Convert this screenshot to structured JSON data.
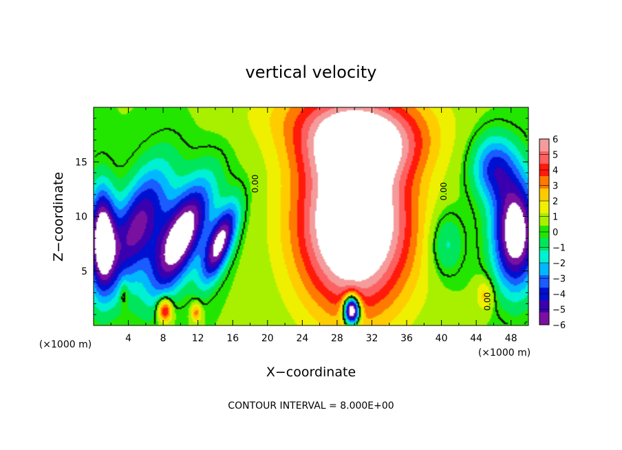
{
  "chart_data": {
    "type": "heatmap",
    "title": "vertical velocity",
    "xlabel": "X−coordinate",
    "ylabel": "Z−coordinate",
    "x_unit_label_left": "(×1000 m)",
    "x_unit_label_right": "(×1000 m)",
    "footer": "CONTOUR INTERVAL = 8.000E+00",
    "xlim": [
      0,
      50
    ],
    "ylim": [
      0,
      20
    ],
    "x_ticks": [
      4,
      8,
      12,
      16,
      20,
      24,
      28,
      32,
      36,
      40,
      44,
      48
    ],
    "x_tick_labels": [
      "4",
      "8",
      "12",
      "16",
      "20",
      "24",
      "28",
      "32",
      "36",
      "40",
      "44",
      "48"
    ],
    "y_ticks": [
      5,
      10,
      15
    ],
    "y_tick_labels": [
      "5",
      "10",
      "15"
    ],
    "colorbar": {
      "min": -6,
      "max": 6,
      "ticks": [
        6,
        5,
        4,
        3,
        2,
        1,
        0,
        -1,
        -2,
        -3,
        -4,
        -5,
        -6
      ],
      "tick_labels": [
        "6",
        "5",
        "4",
        "3",
        "2",
        "1",
        "0",
        "−1",
        "−2",
        "−3",
        "−4",
        "−5",
        "−6"
      ],
      "colors": [
        "#f49b9b",
        "#fd6060",
        "#ff1a0a",
        "#ff7a00",
        "#ffcc00",
        "#eef000",
        "#a8f000",
        "#22e600",
        "#00e65c",
        "#00f0d2",
        "#00b8ff",
        "#1a5cff",
        "#0010d0",
        "#3a00b0",
        "#7a10a0"
      ]
    },
    "contour_labels": [
      {
        "text": "0.00",
        "x": 18.9,
        "z": 13.0
      },
      {
        "text": "0.00",
        "x": 40.6,
        "z": 12.3
      },
      {
        "text": "0.00",
        "x": 45.6,
        "z": 2.2
      }
    ],
    "features": [
      {
        "type": "updraft",
        "x": 30,
        "z": 9.5,
        "sx": 6.5,
        "sz": 8,
        "amp": 9
      },
      {
        "type": "updraft",
        "x": 31,
        "z": 16.5,
        "sx": 7,
        "sz": 3,
        "amp": 4.5
      },
      {
        "type": "updraft",
        "x": 29,
        "z": 19.5,
        "sx": 10,
        "sz": 3,
        "amp": 2.5
      },
      {
        "type": "downdraft",
        "x": 29.7,
        "z": 1.4,
        "sx": 0.9,
        "sz": 1.3,
        "amp": -11
      },
      {
        "type": "downdraft",
        "x": 10,
        "z": 8,
        "sx": 2.5,
        "sz": 5,
        "amp": -8,
        "tilt": 0.45
      },
      {
        "type": "downdraft",
        "x": 5,
        "z": 9,
        "sx": 2.8,
        "sz": 5.5,
        "amp": -6,
        "tilt": 0.4
      },
      {
        "type": "downdraft",
        "x": 14.5,
        "z": 7.5,
        "sx": 1.5,
        "sz": 3.5,
        "amp": -7,
        "tilt": 0.4
      },
      {
        "type": "downdraft",
        "x": 1,
        "z": 8,
        "sx": 1.5,
        "sz": 4.5,
        "amp": -8
      },
      {
        "type": "downdraft",
        "x": 48.5,
        "z": 8.5,
        "sx": 2.5,
        "sz": 5,
        "amp": -8
      },
      {
        "type": "downdraft",
        "x": 46,
        "z": 14.5,
        "sx": 2.5,
        "sz": 3,
        "amp": -4
      },
      {
        "type": "downdraft",
        "x": 40.5,
        "z": 7.5,
        "sx": 2,
        "sz": 3,
        "amp": -2.2
      },
      {
        "type": "updraft",
        "x": 8.2,
        "z": 1.4,
        "sx": 0.8,
        "sz": 1.1,
        "amp": 5
      },
      {
        "type": "updraft",
        "x": 11.8,
        "z": 1.2,
        "sx": 0.6,
        "sz": 0.9,
        "amp": 3
      },
      {
        "type": "updraft",
        "x": 45,
        "z": 2.8,
        "sx": 1,
        "sz": 1.5,
        "amp": 2
      },
      {
        "type": "updraft",
        "x": 3.5,
        "z": 3,
        "sx": 0.5,
        "sz": 1.2,
        "amp": 1.5
      }
    ]
  }
}
